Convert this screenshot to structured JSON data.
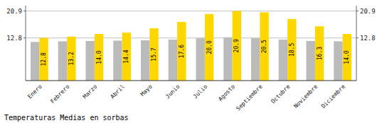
{
  "chart_data": {
    "type": "bar",
    "title": "Temperaturas Medias en sorbas",
    "categories": [
      "Enero",
      "Febrero",
      "Marzo",
      "Abril",
      "Mayo",
      "Junio",
      "Julio",
      "Agosto",
      "Septiembre",
      "Octubre",
      "Noviembre",
      "Diciembre"
    ],
    "series": [
      {
        "color": "#BBBBBB",
        "values": [
          11.6,
          11.8,
          11.9,
          12.0,
          12.1,
          12.3,
          12.7,
          13.0,
          12.7,
          12.3,
          11.9,
          11.8
        ]
      },
      {
        "color": "#FFD700",
        "values": [
          12.8,
          13.2,
          14.0,
          14.4,
          15.7,
          17.6,
          20.0,
          20.9,
          20.5,
          18.5,
          16.3,
          14.0
        ],
        "data_labels": true,
        "value_labels": [
          "12.8",
          "13.2",
          "14.0",
          "14.4",
          "15.7",
          "17.6",
          "20.0",
          "20.9",
          "20.5",
          "18.5",
          "16.3",
          "14.0"
        ]
      }
    ],
    "ylim": [
      0,
      22.5
    ],
    "yticks": [
      12.8,
      20.9
    ],
    "y2lim": [
      0,
      22.5
    ],
    "y2ticks": [
      12.8,
      20.9
    ],
    "grid": true
  }
}
